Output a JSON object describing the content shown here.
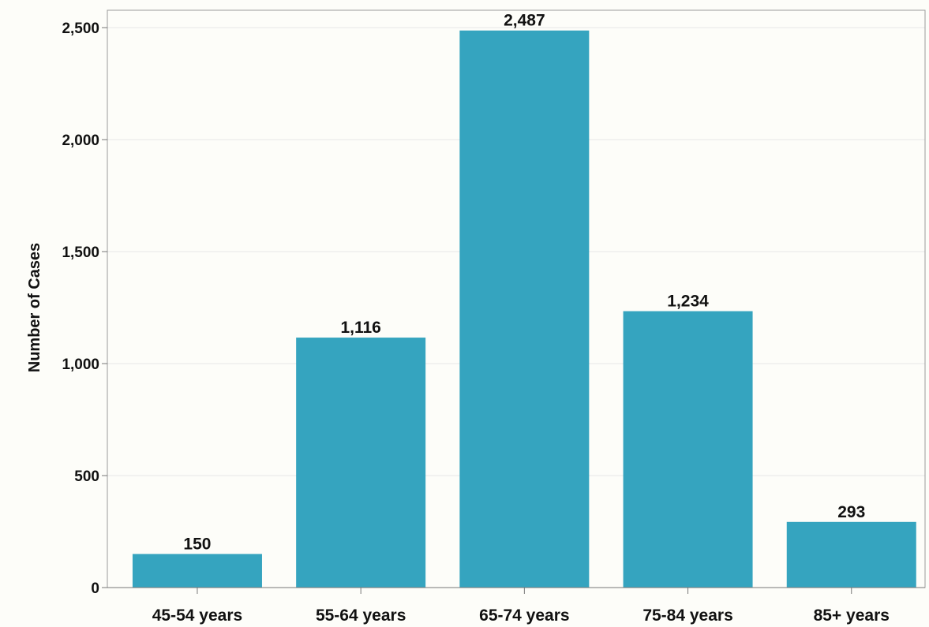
{
  "chart_data": {
    "type": "bar",
    "title": "",
    "xlabel": "",
    "ylabel": "Number of Cases",
    "categories": [
      "45-54 years",
      "55-64 years",
      "65-74 years",
      "75-84 years",
      "85+ years"
    ],
    "values": [
      150,
      1116,
      2487,
      1234,
      293
    ],
    "value_labels": [
      "150",
      "1,116",
      "2,487",
      "1,234",
      "293"
    ],
    "ylim": [
      0,
      2500
    ],
    "yticks": [
      0,
      500,
      1000,
      1500,
      2000,
      2500
    ],
    "ytick_labels": [
      "0",
      "500",
      "1,000",
      "1,500",
      "2,000",
      "2,500"
    ],
    "grid": true,
    "legend": "none",
    "bar_color": "#35a4bf"
  }
}
